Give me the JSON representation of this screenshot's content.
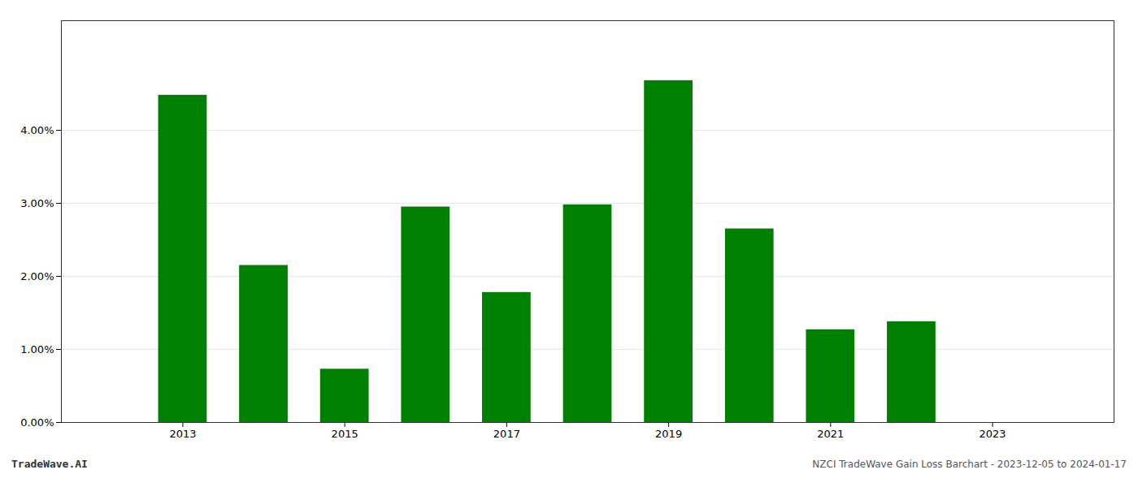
{
  "chart_data": {
    "type": "bar",
    "title": "NZCI TradeWave Gain Loss Barchart - 2023-12-05 to 2024-01-17",
    "annotations": [
      "TradeWave.AI"
    ],
    "x": [
      2013,
      2014,
      2015,
      2016,
      2017,
      2018,
      2019,
      2020,
      2021,
      2022,
      2023
    ],
    "values": [
      0.0448,
      0.0215,
      0.0073,
      0.0295,
      0.0178,
      0.0298,
      0.0468,
      0.0265,
      0.0127,
      0.0138,
      0.0
    ],
    "color": "#008000",
    "xlim": [
      2011.5,
      2024.5
    ],
    "xticks": [
      2013,
      2015,
      2017,
      2019,
      2021,
      2023
    ],
    "ylim": [
      0,
      0.055
    ],
    "yticks": [
      {
        "value": 0.0,
        "label": "0.00%"
      },
      {
        "value": 0.01,
        "label": "1.00%"
      },
      {
        "value": 0.02,
        "label": "2.00%"
      },
      {
        "value": 0.03,
        "label": "3.00%"
      },
      {
        "value": 0.04,
        "label": "4.00%"
      }
    ],
    "grid": true
  }
}
